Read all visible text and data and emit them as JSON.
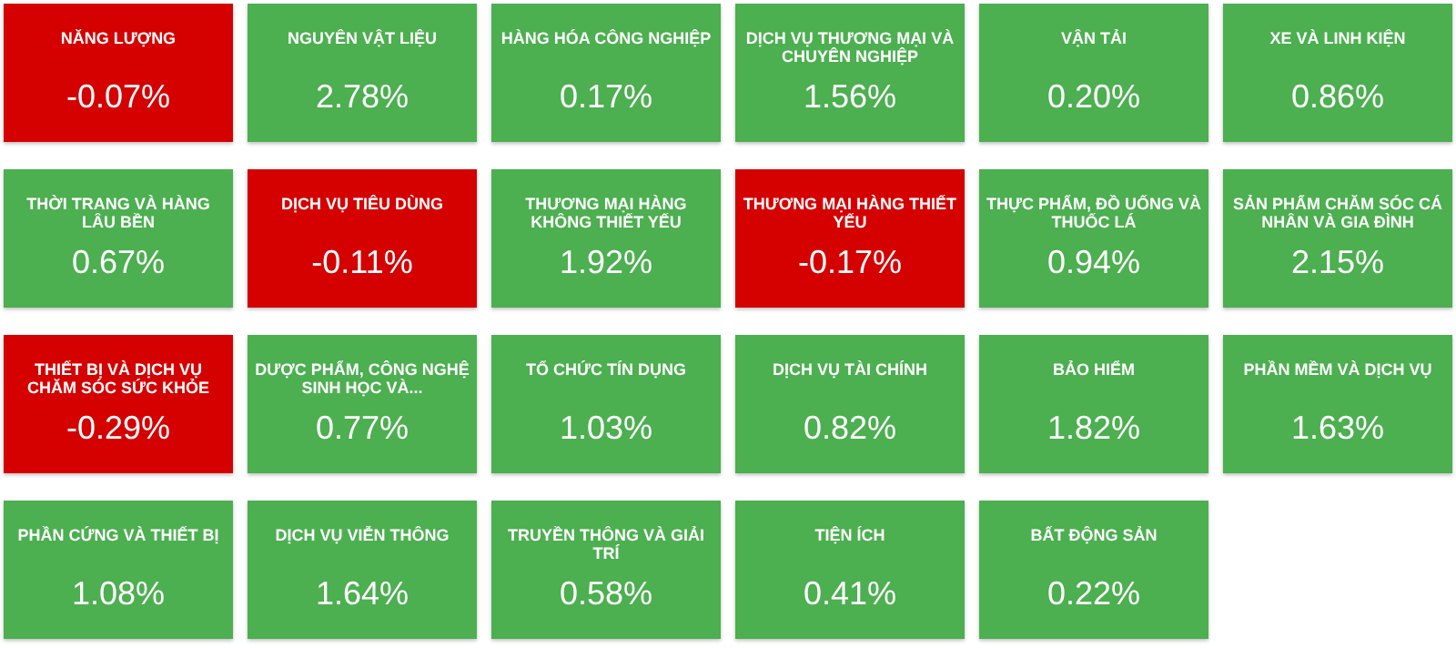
{
  "chart_data": {
    "type": "other",
    "categories": [
      "NĂNG LƯỢNG",
      "NGUYÊN VẬT LIỆU",
      "HÀNG HÓA CÔNG NGHIỆP",
      "DỊCH VỤ THƯƠNG MẠI VÀ CHUYÊN NGHIỆP",
      "VẬN TẢI",
      "XE VÀ LINH KIỆN",
      "THỜI TRANG VÀ HÀNG LÂU BỀN",
      "DỊCH VỤ TIÊU DÙNG",
      "THƯƠNG MẠI HÀNG KHÔNG THIẾT YẾU",
      "THƯƠNG MẠI HÀNG THIẾT YẾU",
      "THỰC PHẨM, ĐỒ UỐNG VÀ THUỐC LÁ",
      "SẢN PHẨM CHĂM SÓC CÁ NHÂN VÀ GIA ĐÌNH",
      "THIẾT BỊ VÀ DỊCH VỤ CHĂM SÓC SỨC KHỎE",
      "DƯỢC PHẨM, CÔNG NGHỆ SINH HỌC VÀ...",
      "TỔ CHỨC TÍN DỤNG",
      "DỊCH VỤ TÀI CHÍNH",
      "BẢO HIỂM",
      "PHẦN MỀM VÀ DỊCH VỤ",
      "PHẦN CỨNG VÀ THIẾT BỊ",
      "DỊCH VỤ VIỄN THÔNG",
      "TRUYỀN THÔNG VÀ GIẢI TRÍ",
      "TIỆN ÍCH",
      "BẤT ĐỘNG SẢN"
    ],
    "values": [
      -0.07,
      2.78,
      0.17,
      1.56,
      0.2,
      0.86,
      0.67,
      -0.11,
      1.92,
      -0.17,
      0.94,
      2.15,
      -0.29,
      0.77,
      1.03,
      0.82,
      1.82,
      1.63,
      1.08,
      1.64,
      0.58,
      0.41,
      0.22
    ],
    "value_labels": [
      "-0.07%",
      "2.78%",
      "0.17%",
      "1.56%",
      "0.20%",
      "0.86%",
      "0.67%",
      "-0.11%",
      "1.92%",
      "-0.17%",
      "0.94%",
      "2.15%",
      "-0.29%",
      "0.77%",
      "1.03%",
      "0.82%",
      "1.82%",
      "1.63%",
      "1.08%",
      "1.64%",
      "0.58%",
      "0.41%",
      "0.22%"
    ],
    "colors": [
      "#d50000",
      "#4caf50",
      "#4caf50",
      "#4caf50",
      "#4caf50",
      "#4caf50",
      "#4caf50",
      "#d50000",
      "#4caf50",
      "#d50000",
      "#4caf50",
      "#4caf50",
      "#d50000",
      "#4caf50",
      "#4caf50",
      "#4caf50",
      "#4caf50",
      "#4caf50",
      "#4caf50",
      "#4caf50",
      "#4caf50",
      "#4caf50",
      "#4caf50"
    ]
  }
}
